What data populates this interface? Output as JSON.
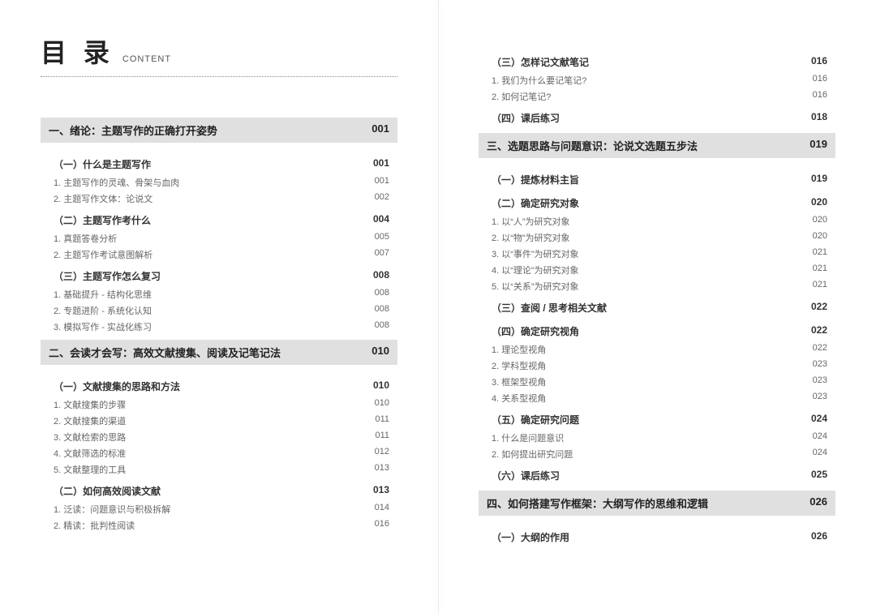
{
  "header": {
    "title_main": "目 录",
    "title_sub": "CONTENT"
  },
  "left": {
    "chapters": [
      {
        "title": "一、绪论：主题写作的正确打开姿势",
        "page": "001",
        "sections": [
          {
            "title": "（一）什么是主题写作",
            "page": "001",
            "items": [
              {
                "title": "1. 主题写作的灵魂、骨架与血肉",
                "page": "001"
              },
              {
                "title": "2. 主题写作文体：论说文",
                "page": "002"
              }
            ]
          },
          {
            "title": "（二）主题写作考什么",
            "page": "004",
            "items": [
              {
                "title": "1. 真题答卷分析",
                "page": "005"
              },
              {
                "title": "2. 主题写作考试意图解析",
                "page": "007"
              }
            ]
          },
          {
            "title": "（三）主题写作怎么复习",
            "page": "008",
            "items": [
              {
                "title": "1. 基础提升 - 结构化思维",
                "page": "008"
              },
              {
                "title": "2. 专题进阶 - 系统化认知",
                "page": "008"
              },
              {
                "title": "3. 模拟写作 - 实战化练习",
                "page": "008"
              }
            ]
          }
        ]
      },
      {
        "title": "二、会读才会写：高效文献搜集、阅读及记笔记法",
        "page": "010",
        "sections": [
          {
            "title": "（一）文献搜集的思路和方法",
            "page": "010",
            "items": [
              {
                "title": "1. 文献搜集的步骤",
                "page": "010"
              },
              {
                "title": "2. 文献搜集的渠道",
                "page": "011"
              },
              {
                "title": "3. 文献检索的思路",
                "page": "011"
              },
              {
                "title": "4. 文献筛选的标准",
                "page": "012"
              },
              {
                "title": "5. 文献整理的工具",
                "page": "013"
              }
            ]
          },
          {
            "title": "（二）如何高效阅读文献",
            "page": "013",
            "items": [
              {
                "title": "1. 泛读：问题意识与积极拆解",
                "page": "014"
              },
              {
                "title": "2. 精读：批判性阅读",
                "page": "016"
              }
            ]
          }
        ]
      }
    ]
  },
  "right": {
    "pre_sections": [
      {
        "title": "（三）怎样记文献笔记",
        "page": "016",
        "items": [
          {
            "title": "1. 我们为什么要记笔记?",
            "page": "016"
          },
          {
            "title": "2. 如何记笔记?",
            "page": "016"
          }
        ]
      },
      {
        "title": "（四）课后练习",
        "page": "018",
        "items": []
      }
    ],
    "chapters": [
      {
        "title": "三、选题思路与问题意识：论说文选题五步法",
        "page": "019",
        "sections": [
          {
            "title": "（一）提炼材料主旨",
            "page": "019",
            "items": []
          },
          {
            "title": "（二）确定研究对象",
            "page": "020",
            "items": [
              {
                "title": "1. 以“人”为研究对象",
                "page": "020"
              },
              {
                "title": "2. 以“物”为研究对象",
                "page": "020"
              },
              {
                "title": "3. 以“事件”为研究对象",
                "page": "021"
              },
              {
                "title": "4. 以“理论”为研究对象",
                "page": "021"
              },
              {
                "title": "5. 以“关系”为研究对象",
                "page": "021"
              }
            ]
          },
          {
            "title": "（三）查阅 / 思考相关文献",
            "page": "022",
            "items": []
          },
          {
            "title": "（四）确定研究视角",
            "page": "022",
            "items": [
              {
                "title": "1. 理论型视角",
                "page": "022"
              },
              {
                "title": "2. 学科型视角",
                "page": "023"
              },
              {
                "title": "3. 框架型视角",
                "page": "023"
              },
              {
                "title": "4. 关系型视角",
                "page": "023"
              }
            ]
          },
          {
            "title": "（五）确定研究问题",
            "page": "024",
            "items": [
              {
                "title": "1. 什么是问题意识",
                "page": "024"
              },
              {
                "title": "2. 如何提出研究问题",
                "page": "024"
              }
            ]
          },
          {
            "title": "（六）课后练习",
            "page": "025",
            "items": []
          }
        ]
      },
      {
        "title": "四、如何搭建写作框架：大纲写作的思维和逻辑",
        "page": "026",
        "sections": [
          {
            "title": "（一）大纲的作用",
            "page": "026",
            "items": []
          }
        ]
      }
    ]
  }
}
